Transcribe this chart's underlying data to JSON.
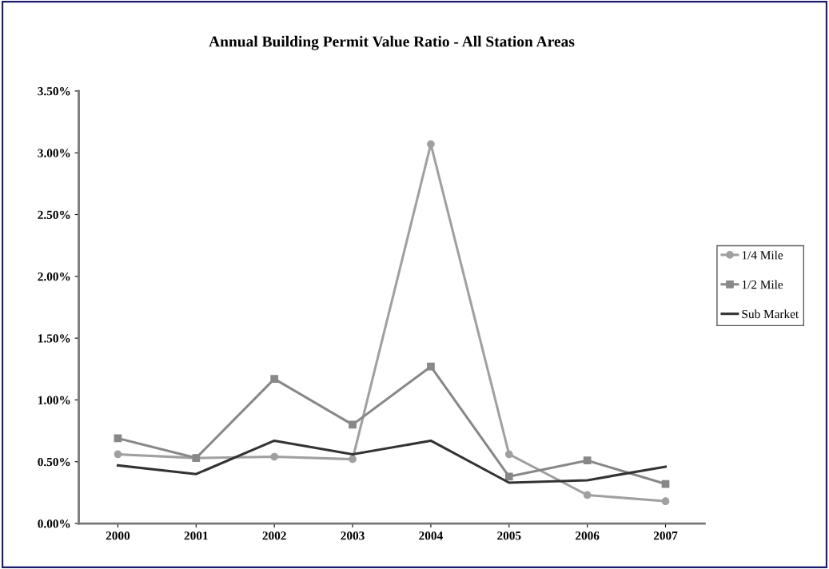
{
  "chart_data": {
    "type": "line",
    "title": "Annual Building Permit Value Ratio - All Station Areas",
    "categories": [
      "2000",
      "2001",
      "2002",
      "2003",
      "2004",
      "2005",
      "2006",
      "2007"
    ],
    "series": [
      {
        "name": "1/4 Mile",
        "color": "#a0a0a0",
        "marker": "circle",
        "values": [
          0.56,
          0.53,
          0.54,
          0.52,
          3.07,
          0.56,
          0.23,
          0.18
        ]
      },
      {
        "name": "1/2 Mile",
        "color": "#888888",
        "marker": "square",
        "values": [
          0.69,
          0.53,
          1.17,
          0.8,
          1.27,
          0.38,
          0.51,
          0.32
        ]
      },
      {
        "name": "Sub Market",
        "color": "#333333",
        "marker": "none",
        "values": [
          0.47,
          0.4,
          0.67,
          0.56,
          0.67,
          0.33,
          0.35,
          0.46
        ]
      }
    ],
    "ylim": [
      0,
      3.5
    ],
    "yticks": [
      {
        "value": 0,
        "label": "0.00%"
      },
      {
        "value": 0.5,
        "label": "0.50%"
      },
      {
        "value": 1,
        "label": "1.00%"
      },
      {
        "value": 1.5,
        "label": "1.50%"
      },
      {
        "value": 2,
        "label": "2.00%"
      },
      {
        "value": 2.5,
        "label": "2.50%"
      },
      {
        "value": 3,
        "label": "3.00%"
      },
      {
        "value": 3.5,
        "label": "3.50%"
      }
    ],
    "grid": false,
    "legend": "right"
  }
}
